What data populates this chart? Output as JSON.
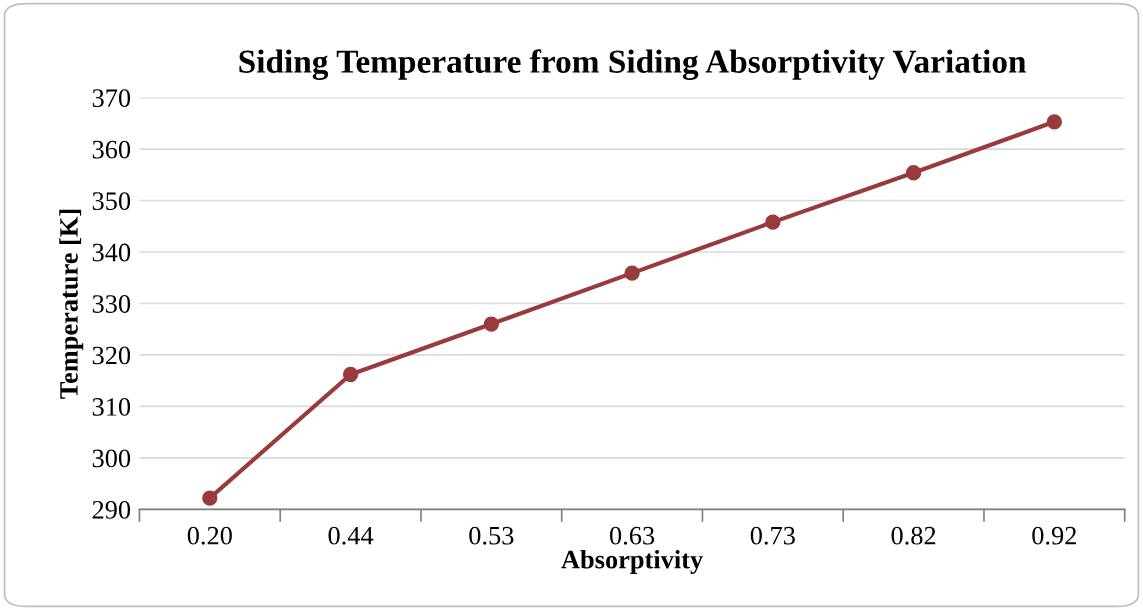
{
  "chart_data": {
    "type": "line",
    "title": "Siding Temperature from Siding Absorptivity Variation",
    "xlabel": "Absorptivity",
    "ylabel": "Temperature [K]",
    "categories": [
      "0.20",
      "0.44",
      "0.53",
      "0.63",
      "0.73",
      "0.82",
      "0.92"
    ],
    "series": [
      {
        "color": "#993b3b",
        "values": [
          292.2,
          316.2,
          326.0,
          335.9,
          345.8,
          355.4,
          365.3
        ]
      }
    ],
    "ylim": [
      290,
      370
    ],
    "yticks": [
      290,
      300,
      310,
      320,
      330,
      340,
      350,
      360,
      370
    ],
    "grid": "y",
    "marker": "circle",
    "line_style": "solid"
  }
}
